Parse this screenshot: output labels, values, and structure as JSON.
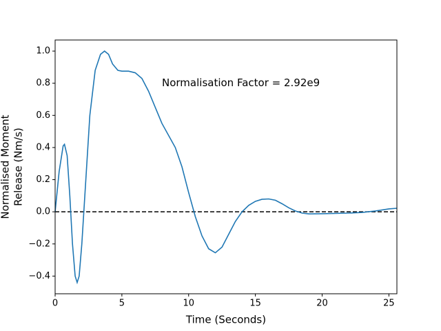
{
  "chart_data": {
    "type": "line",
    "xlabel": "Time (Seconds)",
    "ylabel": [
      "Normalised Moment",
      "Release (Nm/s)"
    ],
    "annotation": "Normalisation Factor = 2.92e9",
    "annotation_at": [
      8,
      0.8
    ],
    "hline": 0,
    "xlim": [
      0,
      25.6
    ],
    "ylim": [
      -0.51,
      1.069
    ],
    "xticks": [
      0,
      5,
      10,
      15,
      20,
      25
    ],
    "yticks": [
      {
        "value": -0.4,
        "label": "−0.4"
      },
      {
        "value": -0.2,
        "label": "−0.2"
      },
      {
        "value": 0,
        "label": "0.0"
      },
      {
        "value": 0.2,
        "label": "0.2"
      },
      {
        "value": 0.4,
        "label": "0.4"
      },
      {
        "value": 0.6,
        "label": "0.6"
      },
      {
        "value": 0.8,
        "label": "0.8"
      },
      {
        "value": 1.0,
        "label": "1.0"
      }
    ],
    "series": [
      {
        "color": "#1f77b4",
        "x": [
          0,
          0.3,
          0.6,
          0.7,
          0.9,
          1.1,
          1.3,
          1.5,
          1.65,
          1.8,
          2.0,
          2.3,
          2.6,
          3.0,
          3.4,
          3.7,
          4.0,
          4.3,
          4.7,
          5.0,
          5.5,
          6.0,
          6.5,
          7.0,
          7.5,
          8.0,
          9.0,
          9.5,
          10.0,
          10.5,
          11.0,
          11.5,
          12.0,
          12.5,
          13.0,
          13.5,
          14.0,
          14.5,
          15.0,
          15.5,
          16.0,
          16.5,
          17.0,
          17.5,
          18.0,
          18.5,
          19.0,
          20,
          21,
          22,
          23,
          24,
          25,
          25.6
        ],
        "values": [
          0,
          0.25,
          0.41,
          0.42,
          0.35,
          0.1,
          -0.2,
          -0.4,
          -0.44,
          -0.4,
          -0.2,
          0.2,
          0.6,
          0.88,
          0.98,
          1.0,
          0.98,
          0.92,
          0.88,
          0.875,
          0.875,
          0.865,
          0.83,
          0.75,
          0.65,
          0.55,
          0.4,
          0.28,
          0.12,
          -0.03,
          -0.15,
          -0.23,
          -0.255,
          -0.22,
          -0.14,
          -0.06,
          0.0,
          0.04,
          0.065,
          0.078,
          0.08,
          0.072,
          0.05,
          0.025,
          0.005,
          -0.008,
          -0.013,
          -0.012,
          -0.01,
          -0.008,
          -0.004,
          0.005,
          0.018,
          0.022
        ]
      }
    ]
  }
}
